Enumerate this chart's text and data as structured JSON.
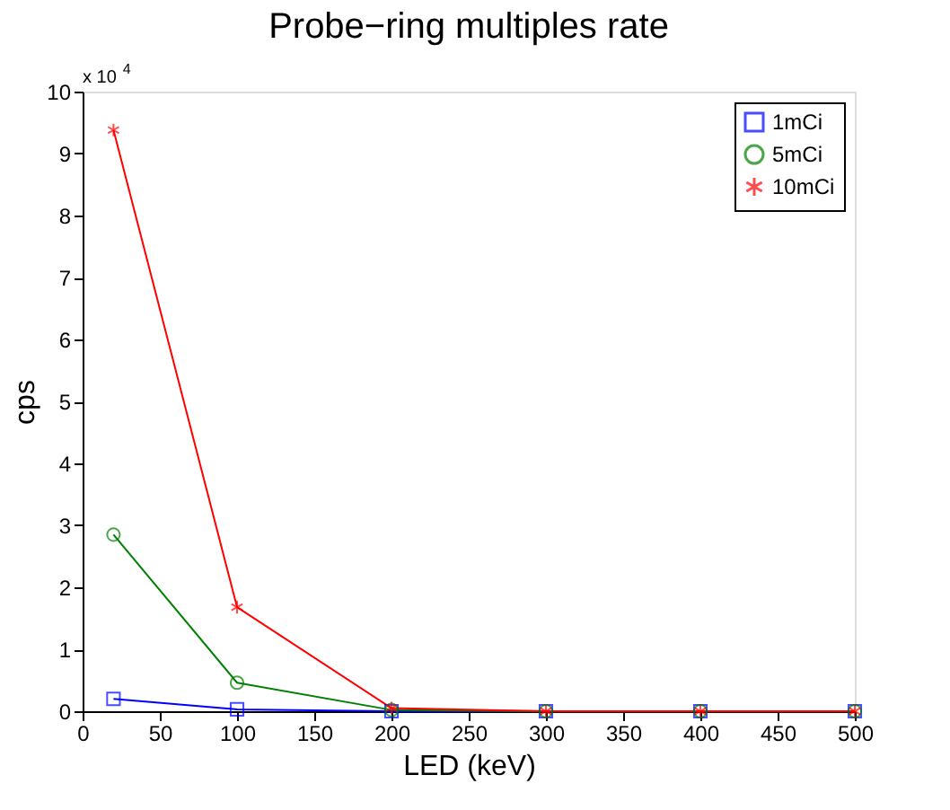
{
  "chart_data": {
    "type": "line",
    "title": "Probe−ring multiples rate",
    "xlabel": "LED (keV)",
    "ylabel": "cps",
    "x": [
      20,
      100,
      200,
      300,
      400,
      500
    ],
    "series": [
      {
        "name": "1mCi",
        "color": "#0000ff",
        "marker": "square",
        "values": [
          0.2,
          0.03,
          0,
          0,
          0,
          0
        ]
      },
      {
        "name": "5mCi",
        "color": "#008000",
        "marker": "circle",
        "values": [
          2.85,
          0.46,
          0.02,
          0,
          0,
          0
        ]
      },
      {
        "name": "10mCi",
        "color": "#ff0000",
        "marker": "cross",
        "values": [
          9.38,
          1.68,
          0.05,
          0,
          0,
          0
        ]
      }
    ],
    "xlim": [
      0,
      500
    ],
    "xticks": [
      0,
      50,
      100,
      150,
      200,
      250,
      300,
      350,
      400,
      450,
      500
    ],
    "ylim": [
      0,
      10
    ],
    "yticks": [
      0,
      1,
      2,
      3,
      4,
      5,
      6,
      7,
      8,
      9,
      10
    ],
    "annotations": [
      "x 10$^{4}$"
    ],
    "grid": false,
    "legend": "top right",
    "line_style": "solid"
  }
}
